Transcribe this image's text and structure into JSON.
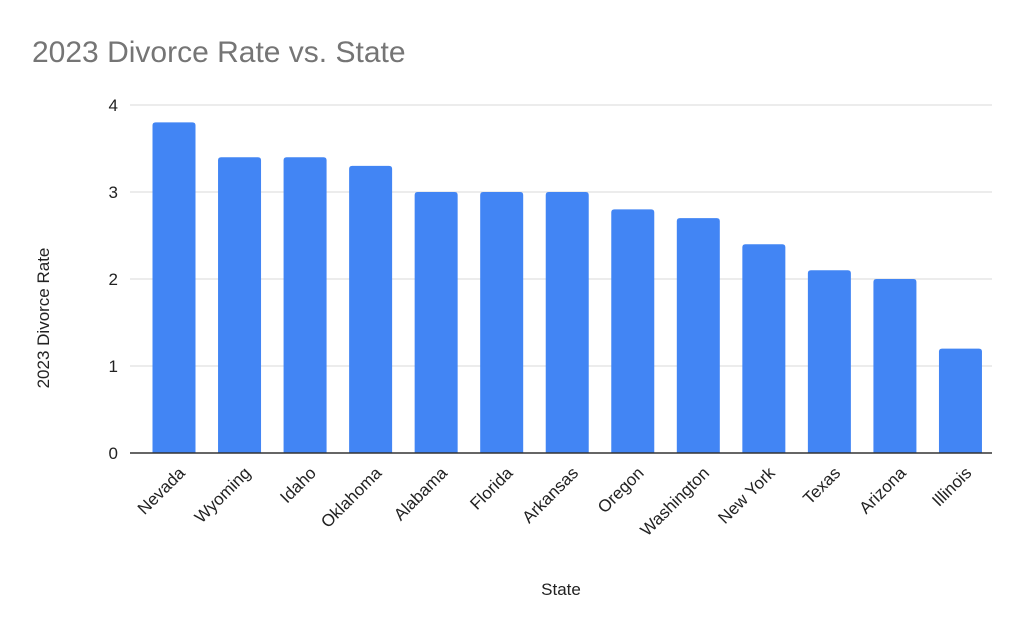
{
  "chart_data": {
    "type": "bar",
    "title": "2023 Divorce Rate vs. State",
    "xlabel": "State",
    "ylabel": "2023 Divorce Rate",
    "categories": [
      "Nevada",
      "Wyoming",
      "Idaho",
      "Oklahoma",
      "Alabama",
      "Florida",
      "Arkansas",
      "Oregon",
      "Washington",
      "New York",
      "Texas",
      "Arizona",
      "Illinois"
    ],
    "values": [
      3.8,
      3.4,
      3.4,
      3.3,
      3.0,
      3.0,
      3.0,
      2.8,
      2.7,
      2.4,
      2.1,
      2.0,
      1.2
    ],
    "ylim": [
      0,
      4
    ],
    "yticks": [
      0,
      1,
      2,
      3,
      4
    ],
    "grid": true,
    "legend": "none",
    "bar_color": "#4285f4"
  }
}
